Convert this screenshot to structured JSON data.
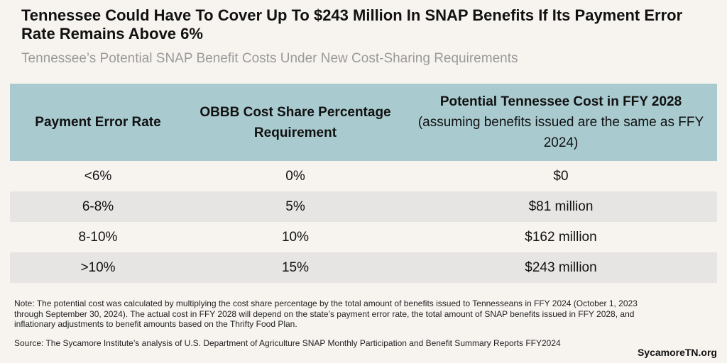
{
  "header": {
    "title": "Tennessee Could Have To Cover Up To $243 Million In SNAP Benefits If Its Payment Error Rate Remains Above 6%",
    "subtitle": "Tennessee’s Potential SNAP Benefit Costs Under New Cost-Sharing Requirements"
  },
  "table": {
    "columns": [
      "Payment Error Rate",
      "OBBB Cost Share Percentage Requirement",
      {
        "main": "Potential Tennessee Cost in FFY 2028",
        "detail": "(assuming benefits issued are the same as FFY 2024)"
      }
    ],
    "rows": [
      [
        "<6%",
        "0%",
        "$0"
      ],
      [
        "6-8%",
        "5%",
        "$81 million"
      ],
      [
        "8-10%",
        "10%",
        "$162 million"
      ],
      [
        ">10%",
        "15%",
        "$243 million"
      ]
    ]
  },
  "footer": {
    "note": "Note: The potential cost was calculated by multiplying the cost share percentage by the total amount of benefits issued to Tennesseans in FFY 2024 (October 1, 2023 through September 30, 2024). The actual cost in FFY 2028 will depend on the state’s payment error rate, the total amount of SNAP benefits issued in FFY 2028, and inflationary adjustments to benefit amounts based on the Thrifty Food Plan.",
    "source": "Source: The Sycamore Institute’s analysis of U.S. Department of Agriculture SNAP Monthly Participation and Benefit Summary Reports FFY2024",
    "brand": "SycamoreTN.org"
  }
}
